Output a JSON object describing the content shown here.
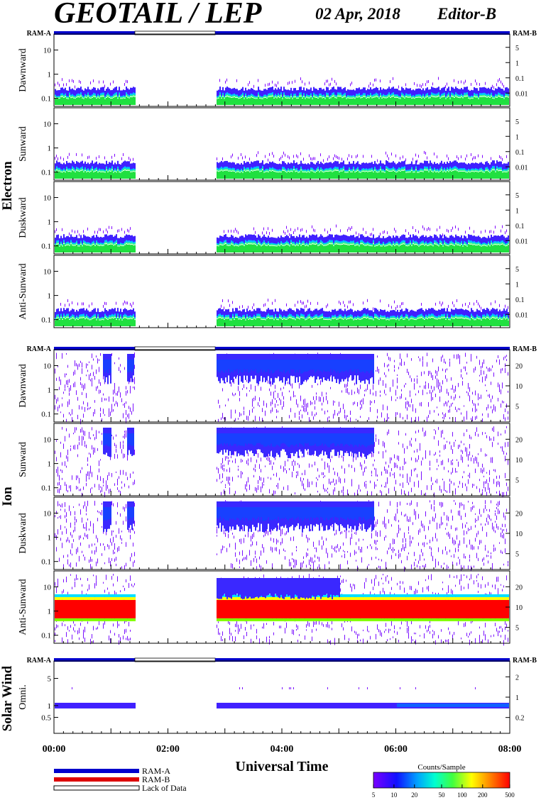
{
  "header": {
    "title": "GEOTAIL / LEP",
    "date": "02 Apr, 2018",
    "editor": "Editor-B"
  },
  "ram_labels": {
    "left": "RAM-A",
    "right": "RAM-B"
  },
  "groups": [
    {
      "name": "Electron",
      "panels": [
        "Dawnward",
        "Sunward",
        "Duskward",
        "Anti-Sunward"
      ]
    },
    {
      "name": "Ion",
      "panels": [
        "Dawnward",
        "Sunward",
        "Duskward",
        "Anti-Sunward"
      ]
    },
    {
      "name": "Solar Wind",
      "panels": [
        "Omni."
      ]
    }
  ],
  "chart_data": {
    "type": "heatmap",
    "title": "GEOTAIL / LEP",
    "xlabel": "Universal Time",
    "x_ticks": [
      "00:00",
      "02:00",
      "04:00",
      "06:00",
      "08:00"
    ],
    "xlim_hours": [
      0,
      8
    ],
    "data_gaps_hours": [
      [
        1.42,
        2.83
      ]
    ],
    "ram_bar": [
      {
        "from": 0,
        "to": 1.42,
        "state": "RAM-A"
      },
      {
        "from": 1.42,
        "to": 2.83,
        "state": "Lack of Data"
      },
      {
        "from": 2.83,
        "to": 8,
        "state": "RAM-A"
      }
    ],
    "panels": [
      {
        "group": "Electron",
        "label": "Dawnward",
        "y_left_ticks": [
          "10",
          "1",
          "0.1"
        ],
        "y_right_ticks": [
          "5",
          "1",
          "0.1",
          "0.01"
        ],
        "y_scale": "log"
      },
      {
        "group": "Electron",
        "label": "Sunward",
        "y_left_ticks": [
          "10",
          "1",
          "0.1"
        ],
        "y_right_ticks": [
          "5",
          "1",
          "0.1",
          "0.01"
        ],
        "y_scale": "log"
      },
      {
        "group": "Electron",
        "label": "Duskward",
        "y_left_ticks": [
          "10",
          "1",
          "0.1"
        ],
        "y_right_ticks": [
          "5",
          "1",
          "0.1",
          "0.01"
        ],
        "y_scale": "log"
      },
      {
        "group": "Electron",
        "label": "Anti-Sunward",
        "y_left_ticks": [
          "10",
          "1",
          "0.1"
        ],
        "y_right_ticks": [
          "5",
          "1",
          "0.1",
          "0.01"
        ],
        "y_scale": "log"
      },
      {
        "group": "Ion",
        "label": "Dawnward",
        "y_left_ticks": [
          "10",
          "1",
          "0.1"
        ],
        "y_right_ticks": [
          "20",
          "10",
          "5"
        ],
        "y_scale": "log"
      },
      {
        "group": "Ion",
        "label": "Sunward",
        "y_left_ticks": [
          "10",
          "1",
          "0.1"
        ],
        "y_right_ticks": [
          "20",
          "10",
          "5"
        ],
        "y_scale": "log"
      },
      {
        "group": "Ion",
        "label": "Duskward",
        "y_left_ticks": [
          "10",
          "1",
          "0.1"
        ],
        "y_right_ticks": [
          "20",
          "10",
          "5"
        ],
        "y_scale": "log"
      },
      {
        "group": "Ion",
        "label": "Anti-Sunward",
        "y_left_ticks": [
          "10",
          "1",
          "0.1"
        ],
        "y_right_ticks": [
          "20",
          "10",
          "5"
        ],
        "y_scale": "log"
      },
      {
        "group": "Solar Wind",
        "label": "Omni.",
        "y_left_ticks": [
          "5",
          "1",
          "0.5"
        ],
        "y_right_ticks": [
          "2",
          "1",
          "0.2"
        ],
        "y_scale": "log"
      }
    ],
    "colorbar": {
      "title": "Counts/Sample",
      "ticks": [
        "5",
        "10",
        "20",
        "50",
        "100",
        "200",
        "500"
      ],
      "scale": "log",
      "range": [
        5,
        500
      ]
    },
    "legend": [
      {
        "label": "RAM-A",
        "color": "#0000cc"
      },
      {
        "label": "RAM-B",
        "color": "#dd0000"
      },
      {
        "label": "Lack of Data",
        "color": "#ffffff"
      }
    ]
  }
}
